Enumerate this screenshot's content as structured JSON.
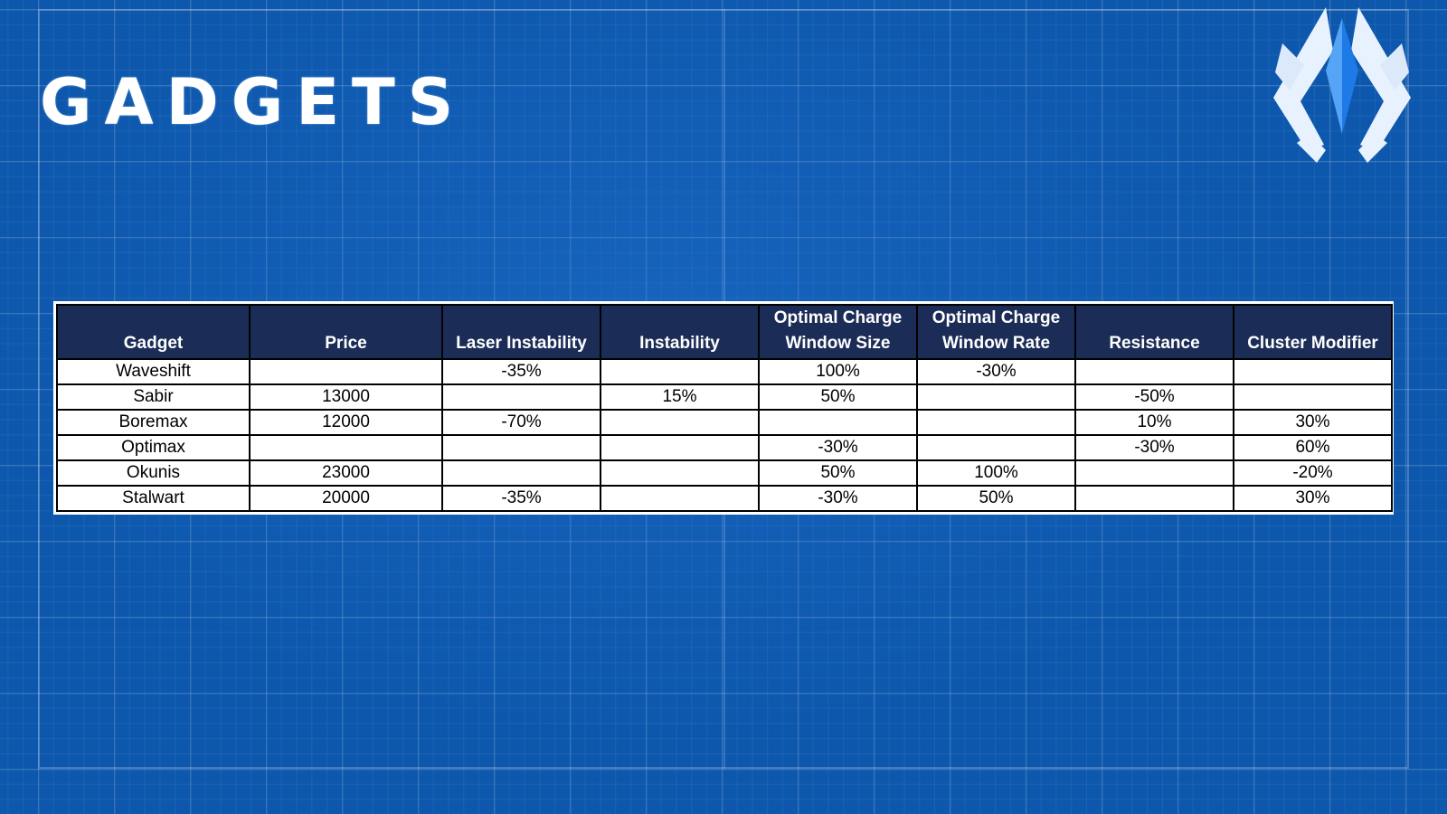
{
  "page": {
    "title": "GADGETS",
    "logo_icon": "diamond-arrow-logo-icon"
  },
  "colors": {
    "background": "#0d58ad",
    "header_bg": "#1b2d57",
    "logo_light": "#e8f2ff",
    "logo_accent": "#1e7ae6"
  },
  "table": {
    "headers": [
      [
        "Gadget"
      ],
      [
        "Price"
      ],
      [
        "Laser Instability"
      ],
      [
        "Instability"
      ],
      [
        "Optimal Charge",
        "Window Size"
      ],
      [
        "Optimal Charge",
        "Window Rate"
      ],
      [
        "Resistance"
      ],
      [
        "Cluster Modifier"
      ]
    ],
    "rows": [
      [
        "Waveshift",
        "",
        "-35%",
        "",
        "100%",
        "-30%",
        "",
        ""
      ],
      [
        "Sabir",
        "13000",
        "",
        "15%",
        "50%",
        "",
        "-50%",
        ""
      ],
      [
        "Boremax",
        "12000",
        "-70%",
        "",
        "",
        "",
        "10%",
        "30%"
      ],
      [
        "Optimax",
        "",
        "",
        "",
        "-30%",
        "",
        "-30%",
        "60%"
      ],
      [
        "Okunis",
        "23000",
        "",
        "",
        "50%",
        "100%",
        "",
        "-20%"
      ],
      [
        "Stalwart",
        "20000",
        "-35%",
        "",
        "-30%",
        "50%",
        "",
        "30%"
      ]
    ]
  }
}
